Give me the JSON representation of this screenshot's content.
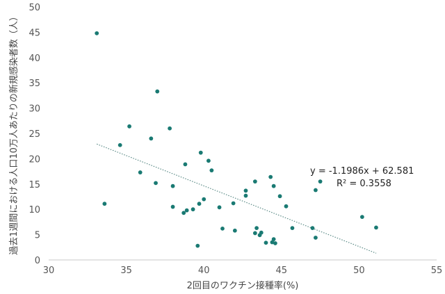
{
  "chart_data": {
    "type": "scatter",
    "xlabel": "2回目のワクチン接種率(%)",
    "ylabel": "過去1週間における人口10万人あたりの新規感染者数（人）",
    "xlim": [
      30,
      55
    ],
    "ylim": [
      0,
      50
    ],
    "x_ticks": [
      "30",
      "35",
      "40",
      "45",
      "50",
      "55"
    ],
    "y_ticks": [
      "0",
      "5",
      "10",
      "15",
      "20",
      "25",
      "30",
      "35",
      "40",
      "45",
      "50"
    ],
    "grid": false,
    "legend": "none",
    "point_color": "#1a7a73",
    "trendline_color": "#5a8a86",
    "equation": "y = -1.1986x + 62.581",
    "r_squared": "R² = 0.3558",
    "trendline": {
      "slope": -1.1986,
      "intercept": 62.581,
      "x_range": [
        33.1,
        51.1
      ]
    },
    "points": [
      [
        33.1,
        44.8
      ],
      [
        33.6,
        11.1
      ],
      [
        34.6,
        22.7
      ],
      [
        35.2,
        26.4
      ],
      [
        35.9,
        17.3
      ],
      [
        36.6,
        24.0
      ],
      [
        36.9,
        15.2
      ],
      [
        37.0,
        33.3
      ],
      [
        37.8,
        26.0
      ],
      [
        38.0,
        10.5
      ],
      [
        38.0,
        14.6
      ],
      [
        38.7,
        9.3
      ],
      [
        38.8,
        18.9
      ],
      [
        38.9,
        9.8
      ],
      [
        39.3,
        10.0
      ],
      [
        39.6,
        2.8
      ],
      [
        39.7,
        11.1
      ],
      [
        39.8,
        21.2
      ],
      [
        40.0,
        12.0
      ],
      [
        40.3,
        19.6
      ],
      [
        40.5,
        17.7
      ],
      [
        41.0,
        10.4
      ],
      [
        41.2,
        6.2
      ],
      [
        41.9,
        11.2
      ],
      [
        42.0,
        5.8
      ],
      [
        42.7,
        13.7
      ],
      [
        42.7,
        12.7
      ],
      [
        43.3,
        15.5
      ],
      [
        43.3,
        5.3
      ],
      [
        43.4,
        6.3
      ],
      [
        43.6,
        4.9
      ],
      [
        43.7,
        5.4
      ],
      [
        44.0,
        3.4
      ],
      [
        44.3,
        16.4
      ],
      [
        44.4,
        3.5
      ],
      [
        44.5,
        14.6
      ],
      [
        44.5,
        4.1
      ],
      [
        44.6,
        3.3
      ],
      [
        44.9,
        12.6
      ],
      [
        45.3,
        10.6
      ],
      [
        45.7,
        6.3
      ],
      [
        47.0,
        6.3
      ],
      [
        47.2,
        4.4
      ],
      [
        47.2,
        13.8
      ],
      [
        47.5,
        15.5
      ],
      [
        50.2,
        8.5
      ],
      [
        51.1,
        6.4
      ]
    ]
  }
}
